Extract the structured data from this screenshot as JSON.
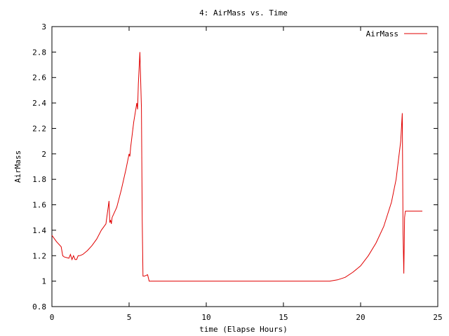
{
  "chart_data": {
    "type": "line",
    "title": "4: AirMass vs. Time",
    "xlabel": "time (Elapse Hours)",
    "ylabel": "AirMass",
    "xlim": [
      0,
      25
    ],
    "ylim": [
      0.8,
      3
    ],
    "xticks": [
      0,
      5,
      10,
      15,
      20,
      25
    ],
    "xtick_labels": [
      "0",
      "5",
      "10",
      "15",
      "20",
      "25"
    ],
    "yticks": [
      0.8,
      1,
      1.2,
      1.4,
      1.6,
      1.8,
      2,
      2.2,
      2.4,
      2.6,
      2.8,
      3
    ],
    "ytick_labels": [
      "0.8",
      "1",
      "1.2",
      "1.4",
      "1.6",
      "1.8",
      "2",
      "2.2",
      "2.4",
      "2.6",
      "2.8",
      "3"
    ],
    "grid": false,
    "legend_position": "top-right",
    "series": [
      {
        "name": "AirMass",
        "color": "#e00000",
        "x": [
          0.0,
          0.3,
          0.6,
          0.7,
          0.8,
          1.1,
          1.2,
          1.3,
          1.4,
          1.5,
          1.6,
          1.7,
          1.8,
          2.0,
          2.3,
          2.6,
          2.9,
          3.2,
          3.5,
          3.7,
          3.75,
          3.8,
          3.85,
          3.9,
          4.2,
          4.5,
          4.8,
          5.0,
          5.05,
          5.1,
          5.3,
          5.5,
          5.55,
          5.6,
          5.7,
          5.8,
          5.85,
          5.9,
          5.95,
          6.0,
          6.2,
          6.3,
          6.4,
          7.0,
          10.0,
          15.0,
          18.0,
          18.5,
          19.0,
          19.5,
          20.0,
          20.5,
          21.0,
          21.5,
          22.0,
          22.3,
          22.6,
          22.7,
          22.75,
          22.8,
          22.85,
          22.9,
          23.0,
          23.5,
          24.0
        ],
        "y": [
          1.36,
          1.31,
          1.27,
          1.2,
          1.19,
          1.18,
          1.21,
          1.17,
          1.2,
          1.17,
          1.17,
          1.2,
          1.2,
          1.21,
          1.24,
          1.28,
          1.33,
          1.4,
          1.45,
          1.63,
          1.46,
          1.48,
          1.45,
          1.5,
          1.58,
          1.72,
          1.88,
          2.0,
          1.98,
          2.05,
          2.25,
          2.4,
          2.35,
          2.55,
          2.8,
          2.36,
          1.49,
          1.04,
          1.04,
          1.04,
          1.05,
          1.0,
          1.0,
          1.0,
          1.0,
          1.0,
          1.0,
          1.01,
          1.03,
          1.07,
          1.12,
          1.2,
          1.3,
          1.43,
          1.62,
          1.8,
          2.1,
          2.32,
          1.38,
          1.06,
          1.5,
          1.55,
          1.55,
          1.55,
          1.55
        ]
      }
    ]
  }
}
